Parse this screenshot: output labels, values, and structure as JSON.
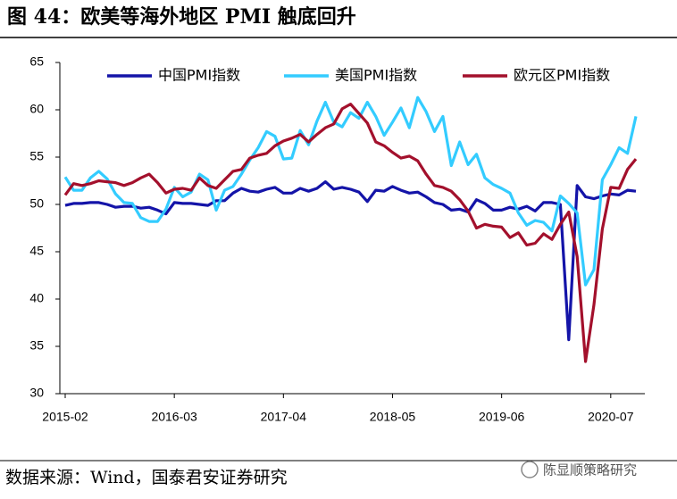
{
  "chart_data": {
    "type": "line",
    "title": "图 44：欧美等海外地区 PMI 触底回升",
    "source": "数据来源：Wind，国泰君安证券研究",
    "watermark": "陈显顺策略研究",
    "x": [
      "2015-02",
      "2015-03",
      "2015-04",
      "2015-05",
      "2015-06",
      "2015-07",
      "2015-08",
      "2015-09",
      "2015-10",
      "2015-11",
      "2015-12",
      "2016-01",
      "2016-02",
      "2016-03",
      "2016-04",
      "2016-05",
      "2016-06",
      "2016-07",
      "2016-08",
      "2016-09",
      "2016-10",
      "2016-11",
      "2016-12",
      "2017-01",
      "2017-02",
      "2017-03",
      "2017-04",
      "2017-05",
      "2017-06",
      "2017-07",
      "2017-08",
      "2017-09",
      "2017-10",
      "2017-11",
      "2017-12",
      "2018-01",
      "2018-02",
      "2018-03",
      "2018-04",
      "2018-05",
      "2018-06",
      "2018-07",
      "2018-08",
      "2018-09",
      "2018-10",
      "2018-11",
      "2018-12",
      "2019-01",
      "2019-02",
      "2019-03",
      "2019-04",
      "2019-05",
      "2019-06",
      "2019-07",
      "2019-08",
      "2019-09",
      "2019-10",
      "2019-11",
      "2019-12",
      "2020-01",
      "2020-02",
      "2020-03",
      "2020-04",
      "2020-05",
      "2020-06",
      "2020-07",
      "2020-08",
      "2020-09",
      "2020-10"
    ],
    "xticks": [
      "2015-02",
      "2016-03",
      "2017-04",
      "2018-05",
      "2019-06",
      "2020-07"
    ],
    "ylim": [
      30,
      65
    ],
    "yticks": [
      30,
      35,
      40,
      45,
      50,
      55,
      60,
      65
    ],
    "legend": "top",
    "series": [
      {
        "name": "中国PMI指数",
        "color": "#1414a8",
        "values": [
          49.9,
          50.1,
          50.1,
          50.2,
          50.2,
          50.0,
          49.7,
          49.8,
          49.8,
          49.6,
          49.7,
          49.4,
          49.0,
          50.2,
          50.1,
          50.1,
          50.0,
          49.9,
          50.4,
          50.4,
          51.2,
          51.7,
          51.4,
          51.3,
          51.6,
          51.8,
          51.2,
          51.2,
          51.7,
          51.4,
          51.7,
          52.4,
          51.6,
          51.8,
          51.6,
          51.3,
          50.3,
          51.5,
          51.4,
          51.9,
          51.5,
          51.2,
          51.3,
          50.8,
          50.2,
          50.0,
          49.4,
          49.5,
          49.2,
          50.5,
          50.1,
          49.4,
          49.4,
          49.7,
          49.5,
          49.8,
          49.3,
          50.2,
          50.2,
          50.0,
          35.7,
          52.0,
          50.8,
          50.6,
          50.9,
          51.1,
          51.0,
          51.5,
          51.4
        ]
      },
      {
        "name": "美国PMI指数",
        "color": "#33ccff",
        "values": [
          52.9,
          51.5,
          51.5,
          52.8,
          53.5,
          52.7,
          51.1,
          50.2,
          50.1,
          48.6,
          48.2,
          48.2,
          49.5,
          51.8,
          50.8,
          51.3,
          53.2,
          52.6,
          49.4,
          51.5,
          51.9,
          53.2,
          54.7,
          56.0,
          57.7,
          57.2,
          54.8,
          54.9,
          57.8,
          56.3,
          58.8,
          60.8,
          58.7,
          58.2,
          59.7,
          59.1,
          60.8,
          59.3,
          57.3,
          58.7,
          60.2,
          58.1,
          61.3,
          59.8,
          57.7,
          59.3,
          54.1,
          56.6,
          54.2,
          55.3,
          52.8,
          52.1,
          51.7,
          51.2,
          49.1,
          47.8,
          48.3,
          48.1,
          47.2,
          50.9,
          50.1,
          49.1,
          41.5,
          43.1,
          52.6,
          54.2,
          56.0,
          55.4,
          59.3
        ]
      },
      {
        "name": "欧元区PMI指数",
        "color": "#a3102c",
        "values": [
          51.0,
          52.2,
          52.0,
          52.2,
          52.5,
          52.4,
          52.3,
          52.0,
          52.3,
          52.8,
          53.2,
          52.3,
          51.2,
          51.6,
          51.7,
          51.5,
          52.8,
          52.0,
          51.7,
          52.6,
          53.5,
          53.7,
          54.9,
          55.2,
          55.4,
          56.2,
          56.7,
          57.0,
          57.4,
          56.6,
          57.4,
          58.1,
          58.5,
          60.1,
          60.6,
          59.6,
          58.6,
          56.6,
          56.2,
          55.5,
          54.9,
          55.1,
          54.6,
          53.2,
          52.0,
          51.8,
          51.4,
          50.5,
          49.3,
          47.5,
          47.9,
          47.7,
          47.6,
          46.5,
          47.0,
          45.7,
          45.9,
          46.9,
          46.3,
          47.9,
          49.2,
          44.5,
          33.4,
          39.4,
          47.4,
          51.8,
          51.7,
          53.7,
          54.8
        ]
      }
    ]
  }
}
